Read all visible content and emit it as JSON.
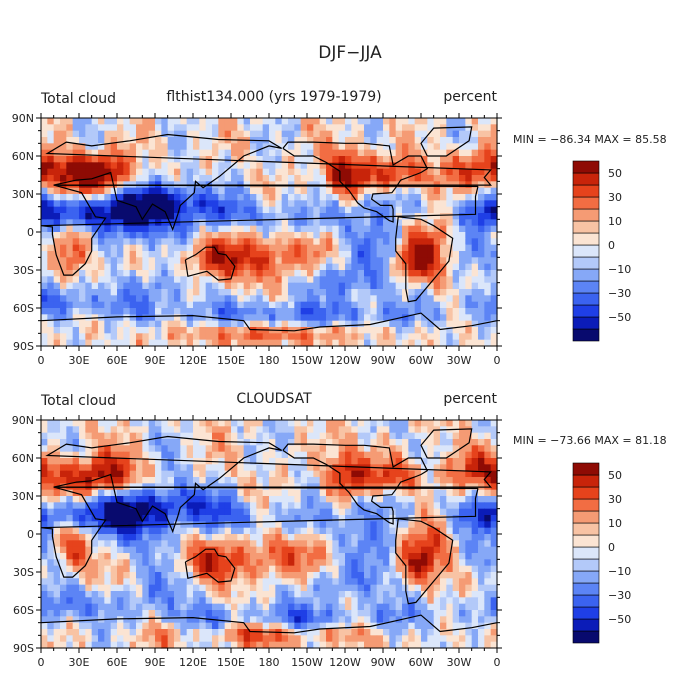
{
  "title": "DJF−JJA",
  "chart_data": [
    {
      "type": "heatmap",
      "variable": "Total cloud",
      "title": "flthist134.000 (yrs 1979-1979)",
      "units": "percent",
      "stats": "MIN = −86.34  MAX =   85.58",
      "xlabel": "",
      "ylabel": "",
      "x_ticks": [
        "0",
        "30E",
        "60E",
        "90E",
        "120E",
        "150E",
        "180",
        "150W",
        "120W",
        "90W",
        "60W",
        "30W",
        "0"
      ],
      "y_ticks": [
        "90N",
        "60N",
        "30N",
        "0",
        "30S",
        "60S",
        "90S"
      ],
      "xlim": [
        0,
        360
      ],
      "ylim": [
        -90,
        90
      ],
      "colorbar_labels": [
        "50",
        "30",
        "10",
        "0",
        "−10",
        "−30",
        "−50"
      ],
      "colorbar_levels": [
        -60,
        -50,
        -40,
        -30,
        -20,
        -10,
        -5,
        0,
        5,
        10,
        20,
        30,
        40,
        50,
        60
      ],
      "field_seed": 1
    },
    {
      "type": "heatmap",
      "variable": "Total cloud",
      "title": "CLOUDSAT",
      "units": "percent",
      "stats": "MIN = −73.66  MAX =   81.18",
      "xlabel": "",
      "ylabel": "",
      "x_ticks": [
        "0",
        "30E",
        "60E",
        "90E",
        "120E",
        "150E",
        "180",
        "150W",
        "120W",
        "90W",
        "60W",
        "30W",
        "0"
      ],
      "y_ticks": [
        "90N",
        "60N",
        "30N",
        "0",
        "30S",
        "60S",
        "90S"
      ],
      "xlim": [
        0,
        360
      ],
      "ylim": [
        -90,
        90
      ],
      "colorbar_labels": [
        "50",
        "30",
        "10",
        "0",
        "−10",
        "−30",
        "−50"
      ],
      "colorbar_levels": [
        -60,
        -50,
        -40,
        -30,
        -20,
        -10,
        -5,
        0,
        5,
        10,
        20,
        30,
        40,
        50,
        60
      ],
      "field_seed": 2
    }
  ],
  "palette": [
    "#080a6e",
    "#0b1cb8",
    "#1f3fe6",
    "#3b63f0",
    "#5c84f5",
    "#86a8f7",
    "#b3c9f9",
    "#dbe6fa",
    "#fbe4d3",
    "#f8c3a4",
    "#f59b74",
    "#f26d43",
    "#e6431c",
    "#c8240a",
    "#8e0b04"
  ]
}
